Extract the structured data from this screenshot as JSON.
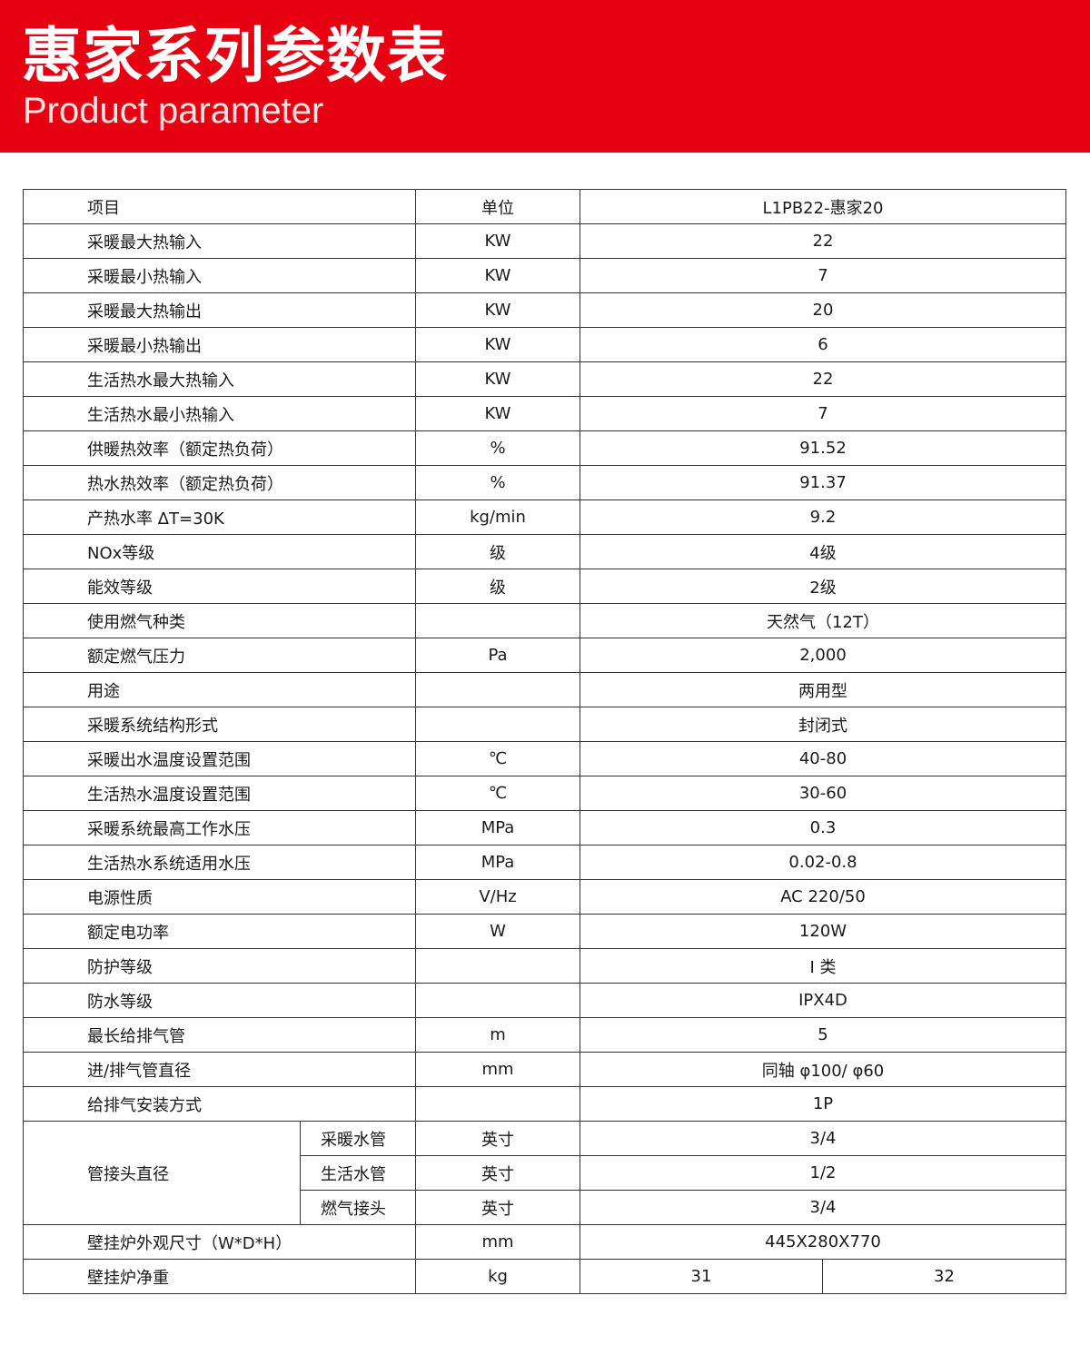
{
  "header": {
    "title": "惠家系列参数表",
    "subtitle": "Product parameter",
    "brand_color": "#e60012"
  },
  "table": {
    "columns": [
      "项目",
      "单位",
      "L1PB22-惠家20"
    ],
    "rows": [
      [
        "采暖最大热输入",
        "KW",
        "22"
      ],
      [
        "采暖最小热输入",
        "KW",
        "7"
      ],
      [
        "采暖最大热输出",
        "KW",
        "20"
      ],
      [
        "采暖最小热输出",
        "KW",
        "6"
      ],
      [
        "生活热水最大热输入",
        "KW",
        "22"
      ],
      [
        "生活热水最小热输入",
        "KW",
        "7"
      ],
      [
        "供暖热效率（额定热负荷）",
        "%",
        "91.52"
      ],
      [
        "热水热效率（额定热负荷）",
        "%",
        "91.37"
      ],
      [
        "产热水率  ΔT=30K",
        "kg/min",
        "9.2"
      ],
      [
        "NOx等级",
        "级",
        "4级"
      ],
      [
        "能效等级",
        "级",
        "2级"
      ],
      [
        "使用燃气种类",
        "",
        "天然气（12T）"
      ],
      [
        "额定燃气压力",
        "Pa",
        "2,000"
      ],
      [
        "用途",
        "",
        "两用型"
      ],
      [
        "采暖系统结构形式",
        "",
        "封闭式"
      ],
      [
        "采暖出水温度设置范围",
        "℃",
        "40-80"
      ],
      [
        "生活热水温度设置范围",
        "℃",
        "30-60"
      ],
      [
        "采暖系统最高工作水压",
        "MPa",
        "0.3"
      ],
      [
        "生活热水系统适用水压",
        "MPa",
        "0.02-0.8"
      ],
      [
        "电源性质",
        "V/Hz",
        "AC 220/50"
      ],
      [
        "额定电功率",
        "W",
        "120W"
      ],
      [
        "防护等级",
        "",
        "I 类"
      ],
      [
        "防水等级",
        "",
        "IPX4D"
      ],
      [
        "最长给排气管",
        "m",
        "5"
      ],
      [
        "进/排气管直径",
        "mm",
        "同轴 φ100/ φ60"
      ],
      [
        "给排气安装方式",
        "",
        "1P"
      ]
    ],
    "pipe_group": {
      "label": "管接头直径",
      "items": [
        [
          "采暖水管",
          "英寸",
          "3/4"
        ],
        [
          "生活水管",
          "英寸",
          "1/2"
        ],
        [
          "燃气接头",
          "英寸",
          "3/4"
        ]
      ]
    },
    "dimensions": [
      "壁挂炉外观尺寸（W*D*H）",
      "mm",
      "445X280X770"
    ],
    "weight": {
      "label": "壁挂炉净重",
      "unit": "kg",
      "values": [
        "31",
        "32"
      ]
    }
  }
}
